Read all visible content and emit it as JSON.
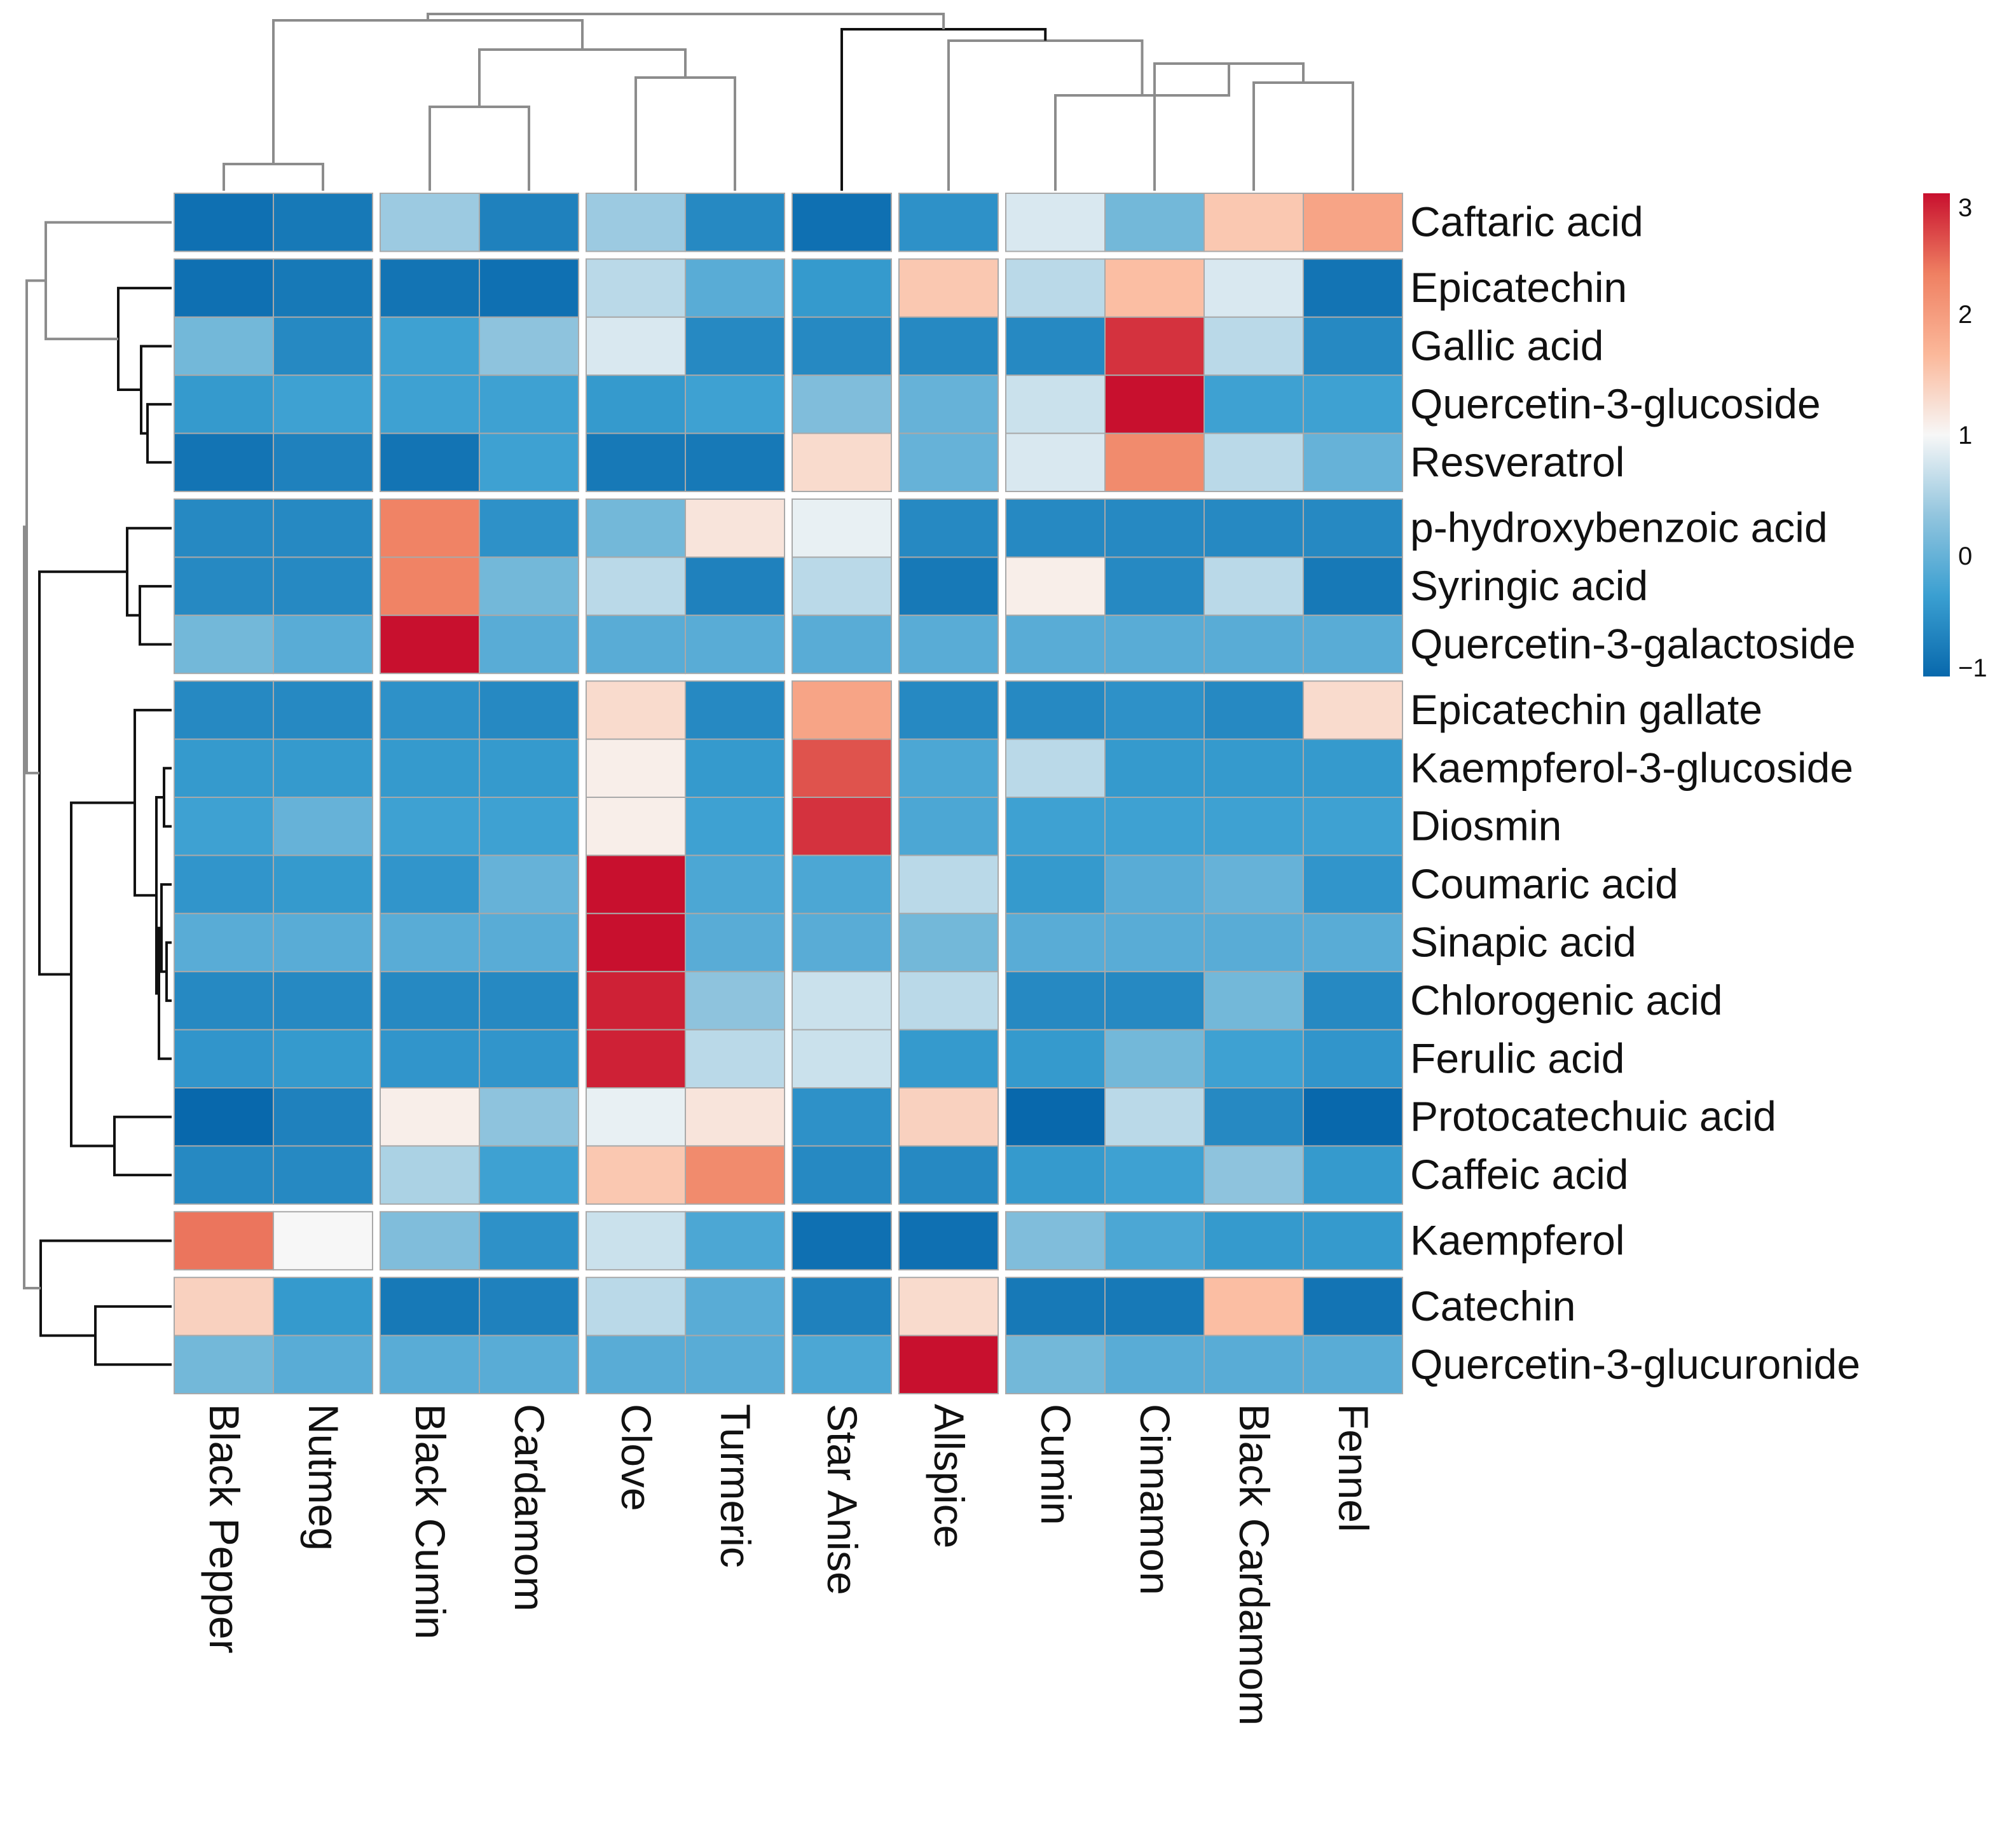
{
  "chart_data": {
    "type": "heatmap",
    "title": "",
    "rows": [
      "Caftaric acid",
      "Epicatechin",
      "Gallic acid",
      "Quercetin-3-glucoside",
      "Resveratrol",
      "p-hydroxybenzoic acid",
      "Syringic acid",
      "Quercetin-3-galactoside",
      "Epicatechin gallate",
      "Kaempferol-3-glucoside",
      "Diosmin",
      "Coumaric acid",
      "Sinapic acid",
      "Chlorogenic acid",
      "Ferulic acid",
      "Protocatechuic acid",
      "Caffeic acid",
      "Kaempferol",
      "Catechin",
      "Quercetin-3-glucuronide"
    ],
    "columns": [
      "Black Pepper",
      "Nutmeg",
      "Black Cumin",
      "Cardamom",
      "Clove",
      "Turmeric",
      "Star Anise",
      "Allspice",
      "Cumin",
      "Cinnamon",
      "Black Cardamom",
      "Fennel"
    ],
    "values": [
      [
        -0.9,
        -0.8,
        0.4,
        -0.7,
        0.4,
        -0.6,
        -0.9,
        -0.5,
        0.8,
        0.1,
        1.5,
        1.9
      ],
      [
        -0.9,
        -0.8,
        -0.85,
        -0.9,
        0.6,
        -0.1,
        -0.4,
        1.5,
        0.6,
        1.6,
        0.8,
        -0.85
      ],
      [
        0.1,
        -0.6,
        -0.3,
        0.3,
        0.8,
        -0.6,
        -0.6,
        -0.6,
        -0.6,
        2.8,
        0.6,
        -0.6
      ],
      [
        -0.4,
        -0.3,
        -0.3,
        -0.3,
        -0.4,
        -0.3,
        0.2,
        0,
        0.7,
        3.0,
        -0.3,
        -0.3
      ],
      [
        -0.85,
        -0.7,
        -0.85,
        -0.3,
        -0.8,
        -0.8,
        1.3,
        0,
        0.8,
        2.2,
        0.6,
        0
      ],
      [
        -0.6,
        -0.6,
        2.3,
        -0.5,
        0.1,
        1.2,
        0.9,
        -0.6,
        -0.6,
        -0.6,
        -0.6,
        -0.6
      ],
      [
        -0.6,
        -0.6,
        2.3,
        0.1,
        0.6,
        -0.7,
        0.6,
        -0.8,
        1.1,
        -0.6,
        0.6,
        -0.8
      ],
      [
        0.1,
        -0.1,
        3.2,
        -0.1,
        -0.1,
        -0.1,
        -0.1,
        -0.1,
        -0.1,
        -0.1,
        -0.1,
        -0.1
      ],
      [
        -0.6,
        -0.6,
        -0.5,
        -0.6,
        1.3,
        -0.6,
        1.9,
        -0.6,
        -0.6,
        -0.5,
        -0.6,
        1.3
      ],
      [
        -0.4,
        -0.4,
        -0.4,
        -0.4,
        1.1,
        -0.4,
        2.6,
        -0.2,
        0.6,
        -0.4,
        -0.4,
        -0.4
      ],
      [
        -0.3,
        0,
        -0.3,
        -0.3,
        1.1,
        -0.3,
        2.8,
        -0.2,
        -0.3,
        -0.3,
        -0.3,
        -0.3
      ],
      [
        -0.45,
        -0.4,
        -0.45,
        0,
        3.0,
        -0.2,
        -0.2,
        0.6,
        -0.4,
        -0.1,
        0,
        -0.45
      ],
      [
        -0.1,
        -0.1,
        -0.1,
        -0.1,
        3.2,
        -0.1,
        -0.1,
        0.1,
        -0.1,
        -0.1,
        -0.1,
        -0.1
      ],
      [
        -0.6,
        -0.6,
        -0.6,
        -0.6,
        2.9,
        0.3,
        0.7,
        0.6,
        -0.6,
        -0.6,
        0.1,
        -0.6
      ],
      [
        -0.45,
        -0.4,
        -0.45,
        -0.45,
        2.9,
        0.6,
        0.7,
        -0.4,
        -0.4,
        0.1,
        -0.3,
        -0.45
      ],
      [
        -1.0,
        -0.7,
        1.1,
        0.3,
        0.9,
        1.2,
        -0.5,
        1.4,
        -1.0,
        0.6,
        -0.6,
        -1.0
      ],
      [
        -0.6,
        -0.6,
        0.5,
        -0.3,
        1.5,
        2.2,
        -0.6,
        -0.6,
        -0.4,
        -0.3,
        0.3,
        -0.4
      ],
      [
        2.4,
        1.0,
        0.2,
        -0.5,
        0.7,
        -0.2,
        -0.9,
        -0.9,
        0.2,
        -0.2,
        -0.4,
        -0.4
      ],
      [
        1.4,
        -0.4,
        -0.8,
        -0.7,
        0.6,
        -0.1,
        -0.7,
        1.3,
        -0.8,
        -0.8,
        1.6,
        -0.85
      ],
      [
        0.1,
        -0.1,
        -0.1,
        -0.1,
        -0.1,
        -0.1,
        -0.2,
        3.2,
        0.1,
        -0.1,
        -0.1,
        -0.1
      ]
    ],
    "row_groups": [
      [
        0
      ],
      [
        1,
        2,
        3,
        4
      ],
      [
        5,
        6,
        7
      ],
      [
        8,
        9,
        10,
        11,
        12,
        13,
        14,
        15,
        16
      ],
      [
        17
      ],
      [
        18,
        19
      ]
    ],
    "column_groups": [
      [
        0,
        1
      ],
      [
        2,
        3
      ],
      [
        4,
        5
      ],
      [
        6
      ],
      [
        7
      ],
      [
        8,
        9,
        10,
        11
      ]
    ],
    "colorbar": {
      "range": [
        -1,
        3
      ],
      "ticks": [
        3,
        2,
        1,
        0,
        -1
      ],
      "tick_labels": [
        "3",
        "2",
        "1",
        "0",
        "−1"
      ],
      "colors": [
        "#0868ac",
        "#3a9fd1",
        "#92c5de",
        "#f7f7f7",
        "#fbb89a",
        "#ef8062",
        "#c8102e"
      ]
    }
  }
}
